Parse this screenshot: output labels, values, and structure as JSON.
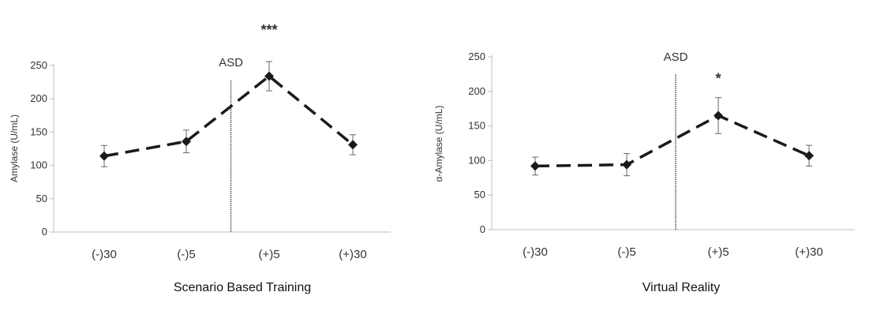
{
  "chart_data": [
    {
      "type": "line",
      "title": "",
      "xlabel": "Scenario Based Training",
      "ylabel": "Amylase (U/mL)",
      "categories": [
        "(-)30",
        "(-)5",
        "(+)5",
        "(+)30"
      ],
      "yticks": [
        "0",
        "50",
        "100",
        "150",
        "200",
        "250"
      ],
      "ylim": [
        0,
        250
      ],
      "series": [
        {
          "name": "",
          "values": [
            114,
            136,
            234,
            131
          ],
          "errors": [
            16,
            17,
            22,
            15
          ]
        }
      ],
      "event": {
        "label": "ASD",
        "between": [
          1,
          2
        ]
      },
      "significance": [
        {
          "category": "(+)5",
          "label": "***"
        }
      ],
      "line_color": "#1a1a1a",
      "grid": false
    },
    {
      "type": "line",
      "title": "",
      "xlabel": "Virtual Reality",
      "ylabel": "α-Amylase (U/mL)",
      "categories": [
        "(-)30",
        "(-)5",
        "(+)5",
        "(+)30"
      ],
      "yticks": [
        "0",
        "50",
        "100",
        "150",
        "200",
        "250"
      ],
      "ylim": [
        0,
        250
      ],
      "series": [
        {
          "name": "",
          "values": [
            92,
            94,
            165,
            107
          ],
          "errors": [
            13,
            16,
            26,
            15
          ]
        }
      ],
      "event": {
        "label": "ASD",
        "between": [
          1,
          2
        ]
      },
      "significance": [
        {
          "category": "(+)5",
          "label": "*"
        }
      ],
      "line_color": "#1a1a1a",
      "grid": false
    }
  ]
}
